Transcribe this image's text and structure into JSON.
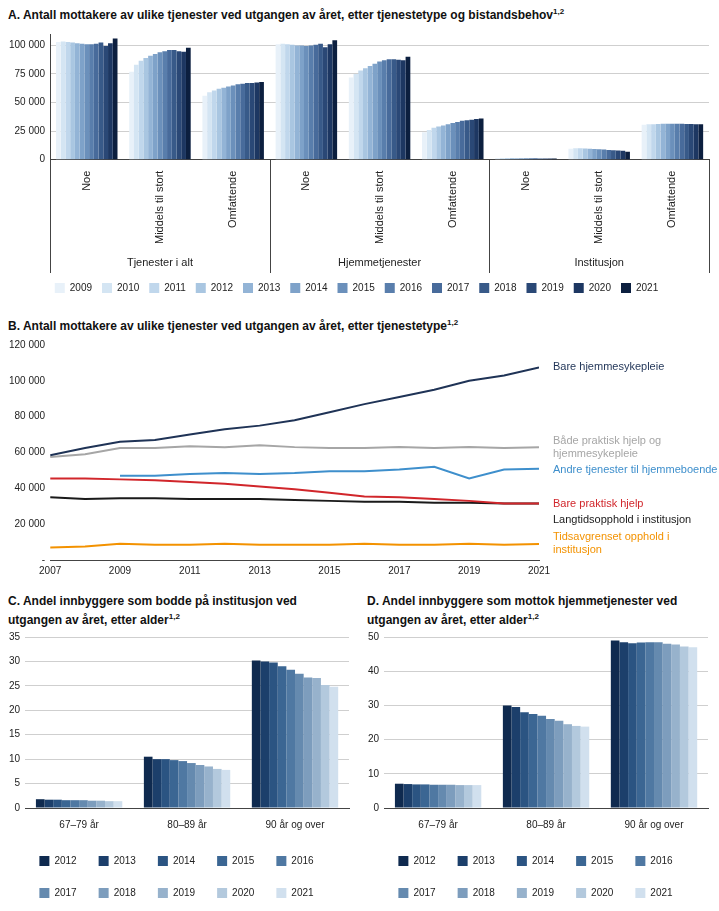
{
  "chart_data": [
    {
      "type": "bar",
      "title": "A. Antall mottakere av ulike tjenester ved utgangen av året, etter tjenestetype og bistandsbehov",
      "title_note": "1,2",
      "categories": [
        "Noe",
        "Middels til stort",
        "Omfattende",
        "Noe",
        "Middels til stort",
        "Omfattende",
        "Noe",
        "Middels til stort",
        "Omfattende"
      ],
      "category_groups": [
        "Tjenester i alt",
        "Tjenester i alt",
        "Tjenester i alt",
        "Hjemmetjenester",
        "Hjemmetjenester",
        "Hjemmetjenester",
        "Institusjon",
        "Institusjon",
        "Institusjon"
      ],
      "series": [
        {
          "name": "2009",
          "color": "#e8f1f9",
          "values": [
            103000,
            77000,
            56000,
            101000,
            72000,
            24000,
            1500,
            9500,
            30500
          ]
        },
        {
          "name": "2010",
          "color": "#d4e5f3",
          "values": [
            103500,
            83000,
            59000,
            101500,
            75000,
            26000,
            1500,
            10000,
            31000
          ]
        },
        {
          "name": "2011",
          "color": "#c0d7ec",
          "values": [
            103000,
            86500,
            60500,
            101000,
            78000,
            28000,
            1400,
            10000,
            31000
          ]
        },
        {
          "name": "2012",
          "color": "#a9c6e1",
          "values": [
            102500,
            89000,
            62000,
            100500,
            80000,
            29000,
            1400,
            9800,
            31200
          ]
        },
        {
          "name": "2013",
          "color": "#93b4d6",
          "values": [
            102000,
            91000,
            63000,
            100000,
            82000,
            30000,
            1300,
            9500,
            31500
          ]
        },
        {
          "name": "2014",
          "color": "#7ea2c9",
          "values": [
            101500,
            92500,
            64000,
            100000,
            84000,
            31000,
            1300,
            9300,
            31500
          ]
        },
        {
          "name": "2015",
          "color": "#6b90bb",
          "values": [
            101000,
            94000,
            65000,
            99500,
            86000,
            32000,
            1200,
            9000,
            31500
          ]
        },
        {
          "name": "2016",
          "color": "#597eac",
          "values": [
            101000,
            95000,
            66000,
            100000,
            87000,
            33000,
            1200,
            8800,
            31500
          ]
        },
        {
          "name": "2017",
          "color": "#486b9b",
          "values": [
            101500,
            96000,
            66500,
            100500,
            88000,
            34000,
            1200,
            8500,
            31500
          ]
        },
        {
          "name": "2018",
          "color": "#385a89",
          "values": [
            102500,
            96000,
            67000,
            101500,
            88000,
            34500,
            1100,
            8300,
            31300
          ]
        },
        {
          "name": "2019",
          "color": "#2a4876",
          "values": [
            99500,
            95000,
            67000,
            98500,
            87500,
            35000,
            1100,
            8000,
            31200
          ]
        },
        {
          "name": "2020",
          "color": "#1d3762",
          "values": [
            102000,
            94500,
            67500,
            101000,
            87000,
            35500,
            1000,
            7800,
            31000
          ]
        },
        {
          "name": "2021",
          "color": "#0c1f3f",
          "values": [
            106000,
            98000,
            68000,
            104500,
            90000,
            36000,
            1000,
            7000,
            31000
          ]
        }
      ],
      "ylim": [
        0,
        110000
      ],
      "yticks": [
        0,
        {
          "value": 25000,
          "label": "25 000"
        },
        {
          "value": 50000,
          "label": "50 000"
        },
        {
          "value": 75000,
          "label": "75 000"
        },
        {
          "value": 100000,
          "label": "100 000"
        }
      ],
      "grid": true,
      "legend": "bottom"
    },
    {
      "type": "line",
      "title": "B. Antall mottakere av ulike tjenester ved utgangen av året, etter tjenestetype",
      "title_note": "1,2",
      "x": [
        2007,
        2008,
        2009,
        2010,
        2011,
        2012,
        2013,
        2014,
        2015,
        2016,
        2017,
        2018,
        2019,
        2020,
        2021
      ],
      "series": [
        {
          "name": "Bare hjemmesykepleie",
          "color": "#1f3356",
          "values": [
            58500,
            62500,
            66000,
            67000,
            70000,
            73000,
            75000,
            78000,
            82500,
            87000,
            91000,
            95000,
            100000,
            103000,
            107500
          ]
        },
        {
          "name": "Både praktisk hjelp og hjemmesykepleie",
          "color": "#a6a6a6",
          "values": [
            57500,
            59000,
            62500,
            62500,
            63500,
            63000,
            64000,
            63000,
            62500,
            62500,
            63000,
            62500,
            63000,
            62500,
            63000
          ]
        },
        {
          "name": "Andre tjenester til hjemmeboende",
          "color": "#3e8fcc",
          "values": [
            null,
            null,
            47000,
            47000,
            48000,
            48500,
            48000,
            48500,
            49500,
            49500,
            50500,
            52000,
            45500,
            50500,
            51000
          ]
        },
        {
          "name": "Bare praktisk hjelp",
          "color": "#d1262b",
          "values": [
            45500,
            45500,
            45000,
            44500,
            43500,
            42500,
            41000,
            39500,
            37500,
            35500,
            35000,
            34000,
            33000,
            31500,
            31500
          ]
        },
        {
          "name": "Langtidsopphold i institusjon",
          "color": "#1a1a1a",
          "values": [
            35000,
            34000,
            34500,
            34500,
            34000,
            34000,
            34000,
            33500,
            33000,
            32500,
            32500,
            32000,
            32000,
            31500,
            31500
          ]
        },
        {
          "name": "Tidsavgrenset opphold i institusjon",
          "color": "#f39200",
          "values": [
            7000,
            7500,
            9000,
            8500,
            8500,
            9000,
            8500,
            8500,
            8500,
            9000,
            8500,
            8500,
            9000,
            8500,
            9000
          ]
        }
      ],
      "xlim": [
        2007,
        2021
      ],
      "xticks": [
        2007,
        2009,
        2011,
        2013,
        2015,
        2017,
        2019,
        2021
      ],
      "ylim": [
        0,
        120000
      ],
      "yticks": [
        {
          "value": 0,
          "label": "-"
        },
        {
          "value": 20000,
          "label": "20 000"
        },
        {
          "value": 40000,
          "label": "40 000"
        },
        {
          "value": 60000,
          "label": "60 000"
        },
        {
          "value": 80000,
          "label": "80 000"
        },
        {
          "value": 100000,
          "label": "100 000"
        },
        {
          "value": 120000,
          "label": "120 000"
        }
      ],
      "grid": false,
      "legend": "right"
    },
    {
      "type": "bar",
      "title": "C. Andel innbyggere som bodde på institusjon ved utgangen av året, etter alder",
      "title_note": "1,2",
      "categories": [
        "67–79 år",
        "80–89 år",
        "90 år og over"
      ],
      "series": [
        {
          "name": "2012",
          "color": "#0f2a4f",
          "values": [
            1.8,
            10.5,
            30.2
          ]
        },
        {
          "name": "2013",
          "color": "#1c3f6b",
          "values": [
            1.7,
            10.0,
            30.0
          ]
        },
        {
          "name": "2014",
          "color": "#2b5482",
          "values": [
            1.7,
            10.0,
            29.8
          ]
        },
        {
          "name": "2015",
          "color": "#3b6693",
          "values": [
            1.6,
            9.8,
            29.0
          ]
        },
        {
          "name": "2016",
          "color": "#4f78a2",
          "values": [
            1.6,
            9.6,
            28.3
          ]
        },
        {
          "name": "2017",
          "color": "#658aaf",
          "values": [
            1.6,
            9.2,
            27.5
          ]
        },
        {
          "name": "2018",
          "color": "#7d9dbd",
          "values": [
            1.5,
            8.8,
            26.7
          ]
        },
        {
          "name": "2019",
          "color": "#97b2cc",
          "values": [
            1.5,
            8.5,
            26.6
          ]
        },
        {
          "name": "2020",
          "color": "#b3c9dd",
          "values": [
            1.4,
            8.0,
            25.2
          ]
        },
        {
          "name": "2021",
          "color": "#d1e0ee",
          "values": [
            1.4,
            7.8,
            24.8
          ]
        }
      ],
      "ylim": [
        0,
        35
      ],
      "yticks": [
        0,
        5,
        10,
        15,
        20,
        25,
        30,
        35
      ],
      "grid": true,
      "legend": "bottom"
    },
    {
      "type": "bar",
      "title": "D. Andel innbyggere som mottok hjemmetjenester ved utgangen av året, etter alder",
      "title_note": "1,2",
      "categories": [
        "67–79 år",
        "80–89 år",
        "90 år og over"
      ],
      "series": [
        {
          "name": "2012",
          "color": "#0f2a4f",
          "values": [
            7.1,
            30.0,
            49.0
          ]
        },
        {
          "name": "2013",
          "color": "#1c3f6b",
          "values": [
            7.0,
            29.5,
            48.5
          ]
        },
        {
          "name": "2014",
          "color": "#2b5482",
          "values": [
            6.9,
            28.0,
            48.2
          ]
        },
        {
          "name": "2015",
          "color": "#3b6693",
          "values": [
            6.9,
            27.5,
            48.4
          ]
        },
        {
          "name": "2016",
          "color": "#4f78a2",
          "values": [
            6.8,
            27.0,
            48.5
          ]
        },
        {
          "name": "2017",
          "color": "#658aaf",
          "values": [
            6.8,
            26.0,
            48.5
          ]
        },
        {
          "name": "2018",
          "color": "#7d9dbd",
          "values": [
            6.8,
            25.5,
            48.0
          ]
        },
        {
          "name": "2019",
          "color": "#97b2cc",
          "values": [
            6.7,
            24.5,
            47.8
          ]
        },
        {
          "name": "2020",
          "color": "#b3c9dd",
          "values": [
            6.7,
            24.0,
            47.2
          ]
        },
        {
          "name": "2021",
          "color": "#d1e0ee",
          "values": [
            6.7,
            23.8,
            47.0
          ]
        }
      ],
      "ylim": [
        0,
        50
      ],
      "yticks": [
        0,
        10,
        20,
        30,
        40,
        50
      ],
      "grid": true,
      "legend": "bottom"
    }
  ]
}
